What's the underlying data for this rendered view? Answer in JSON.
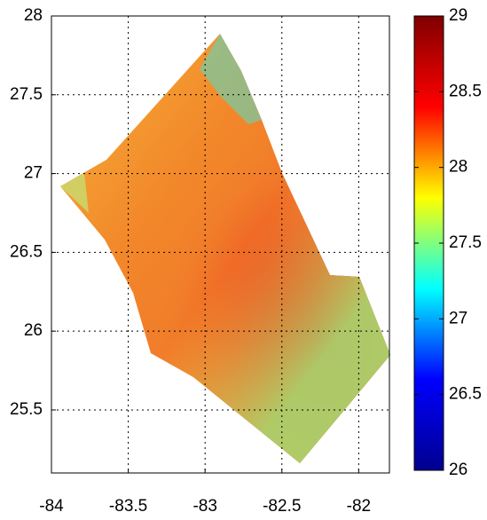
{
  "chart_data": {
    "type": "heatmap",
    "xlim": [
      -84,
      -81.8
    ],
    "xticks": [
      -84,
      -83.5,
      -83,
      -82.5,
      -82
    ],
    "ylim": [
      25.1,
      28
    ],
    "yticks": [
      25.5,
      26,
      26.5,
      27,
      27.5,
      28
    ],
    "grid": true,
    "colorbar": {
      "lim": [
        26,
        29
      ],
      "ticks": [
        26,
        26.5,
        27,
        27.5,
        28,
        28.5,
        29
      ],
      "colormap": [
        "#00008f",
        "#0000ff",
        "#00ffff",
        "#ffff00",
        "#ff0000",
        "#800000"
      ]
    }
  }
}
